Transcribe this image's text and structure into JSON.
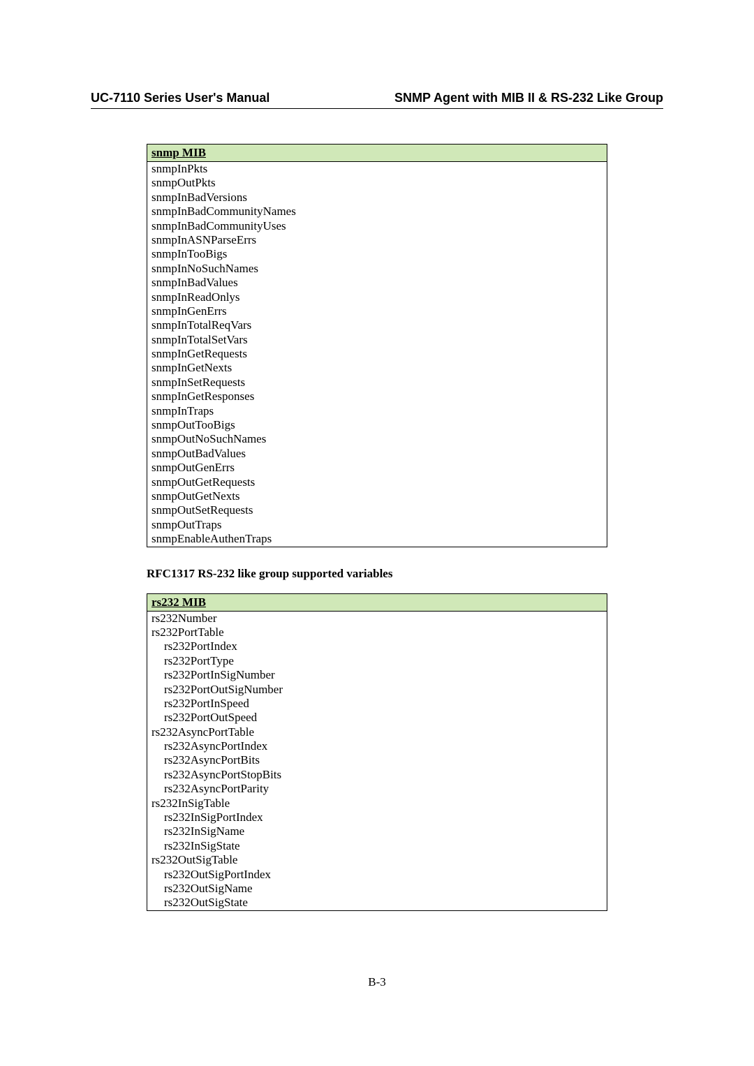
{
  "header": {
    "left": "UC-7110 Series User's Manual",
    "right": "SNMP Agent with MIB II & RS-232 Like Group"
  },
  "tables": {
    "snmp": {
      "header_bg": "#d0e8b8",
      "header": "snmp MIB",
      "rows": [
        {
          "text": "snmpInPkts",
          "indent": 0
        },
        {
          "text": "snmpOutPkts",
          "indent": 0
        },
        {
          "text": "snmpInBadVersions",
          "indent": 0
        },
        {
          "text": "snmpInBadCommunityNames",
          "indent": 0
        },
        {
          "text": "snmpInBadCommunityUses",
          "indent": 0
        },
        {
          "text": "snmpInASNParseErrs",
          "indent": 0
        },
        {
          "text": "snmpInTooBigs",
          "indent": 0
        },
        {
          "text": "snmpInNoSuchNames",
          "indent": 0
        },
        {
          "text": "snmpInBadValues",
          "indent": 0
        },
        {
          "text": "snmpInReadOnlys",
          "indent": 0
        },
        {
          "text": "snmpInGenErrs",
          "indent": 0
        },
        {
          "text": "snmpInTotalReqVars",
          "indent": 0
        },
        {
          "text": "snmpInTotalSetVars",
          "indent": 0
        },
        {
          "text": "snmpInGetRequests",
          "indent": 0
        },
        {
          "text": "snmpInGetNexts",
          "indent": 0
        },
        {
          "text": "snmpInSetRequests",
          "indent": 0
        },
        {
          "text": "snmpInGetResponses",
          "indent": 0
        },
        {
          "text": "snmpInTraps",
          "indent": 0
        },
        {
          "text": "snmpOutTooBigs",
          "indent": 0
        },
        {
          "text": "snmpOutNoSuchNames",
          "indent": 0
        },
        {
          "text": "snmpOutBadValues",
          "indent": 0
        },
        {
          "text": "snmpOutGenErrs",
          "indent": 0
        },
        {
          "text": "snmpOutGetRequests",
          "indent": 0
        },
        {
          "text": "snmpOutGetNexts",
          "indent": 0
        },
        {
          "text": "snmpOutSetRequests",
          "indent": 0
        },
        {
          "text": "snmpOutTraps",
          "indent": 0
        },
        {
          "text": "snmpEnableAuthenTraps",
          "indent": 0
        }
      ]
    },
    "rs232": {
      "header_bg": "#d0e8b8",
      "header": "rs232 MIB",
      "rows": [
        {
          "text": "rs232Number",
          "indent": 0
        },
        {
          "text": "rs232PortTable",
          "indent": 0
        },
        {
          "text": "rs232PortIndex",
          "indent": 1
        },
        {
          "text": "rs232PortType",
          "indent": 1
        },
        {
          "text": "rs232PortInSigNumber",
          "indent": 1
        },
        {
          "text": "rs232PortOutSigNumber",
          "indent": 1
        },
        {
          "text": "rs232PortInSpeed",
          "indent": 1
        },
        {
          "text": "rs232PortOutSpeed",
          "indent": 1
        },
        {
          "text": "rs232AsyncPortTable",
          "indent": 0
        },
        {
          "text": "rs232AsyncPortIndex",
          "indent": 1
        },
        {
          "text": "rs232AsyncPortBits",
          "indent": 1
        },
        {
          "text": "rs232AsyncPortStopBits",
          "indent": 1
        },
        {
          "text": "rs232AsyncPortParity",
          "indent": 1
        },
        {
          "text": "rs232InSigTable",
          "indent": 0
        },
        {
          "text": "rs232InSigPortIndex",
          "indent": 1
        },
        {
          "text": "rs232InSigName",
          "indent": 1
        },
        {
          "text": "rs232InSigState",
          "indent": 1
        },
        {
          "text": "rs232OutSigTable",
          "indent": 0
        },
        {
          "text": "rs232OutSigPortIndex",
          "indent": 1
        },
        {
          "text": "rs232OutSigName",
          "indent": 1
        },
        {
          "text": "rs232OutSigState",
          "indent": 1
        }
      ]
    }
  },
  "section_title": "RFC1317 RS-232 like group supported variables",
  "page_number": "B-3"
}
